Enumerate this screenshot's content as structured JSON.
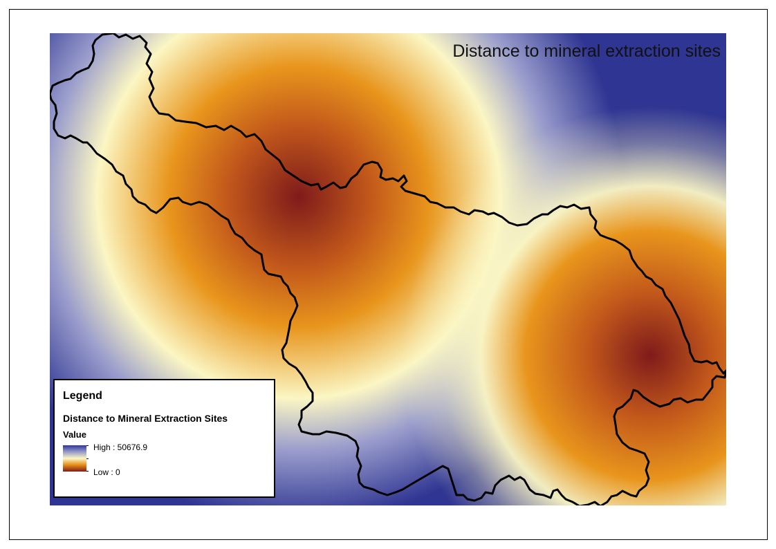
{
  "map": {
    "title": "Distance to mineral extraction sites"
  },
  "legend": {
    "title": "Legend",
    "layer_name": "Distance to Mineral Extraction Sites",
    "field_name": "Value",
    "high_label": "High : 50676.9",
    "low_label": "Low : 0"
  },
  "colors": {
    "low": "#7e1b1b",
    "mid_low": "#e68d18",
    "mid": "#fbf6c4",
    "high": "#2f3592",
    "boundary": "#000000"
  }
}
